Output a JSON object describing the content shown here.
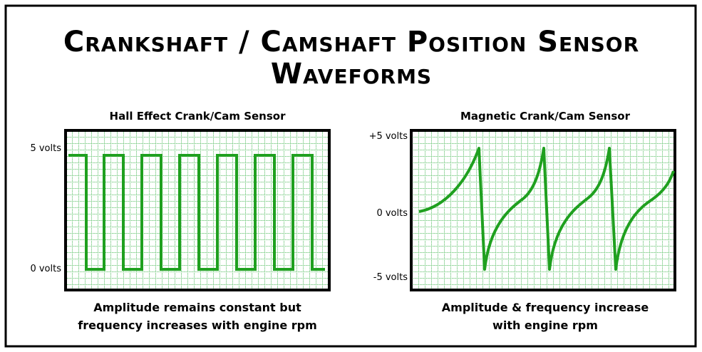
{
  "header": {
    "title": [
      "Crankshaft / Camshaft Position Sensor",
      "Waveforms"
    ]
  },
  "panels": [
    {
      "title": "Hall Effect Crank/Cam Sensor",
      "labels": [
        "5 volts",
        "0 volts"
      ],
      "caption": [
        "Amplitude remains constant but",
        "frequency increases with engine rpm"
      ]
    },
    {
      "title": "Magnetic Crank/Cam Sensor",
      "labels": [
        "+5 volts",
        "0 volts",
        "-5 volts"
      ],
      "caption": [
        "Amplitude & frequency increase",
        "with engine rpm"
      ]
    }
  ]
}
